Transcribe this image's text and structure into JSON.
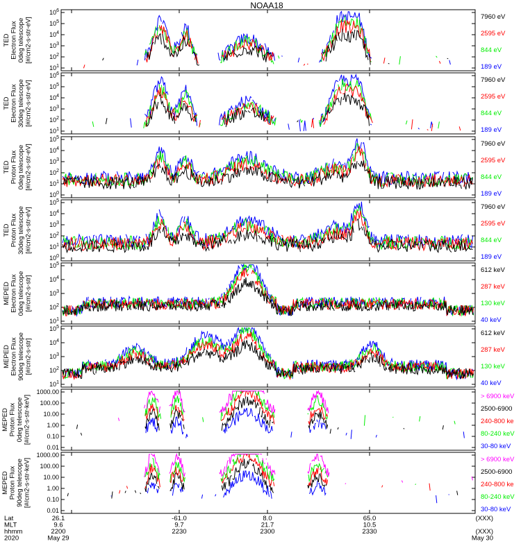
{
  "title": "NOAA18",
  "colors": {
    "black": "#000000",
    "red": "#ff0000",
    "green": "#00ee00",
    "blue": "#0000ff",
    "magenta": "#ff00ff"
  },
  "bottom_axis": {
    "row_labels": [
      "Lat",
      "MLT",
      "hhmm",
      "2020"
    ],
    "ticks": [
      {
        "lat": "26.1",
        "mlt": "9.6",
        "hhmm": "2200",
        "date": "May 29"
      },
      {
        "lat": "-61.0",
        "mlt": "9.7",
        "hhmm": "2230",
        "date": ""
      },
      {
        "lat": "8.0",
        "mlt": "21.7",
        "hhmm": "2300",
        "date": ""
      },
      {
        "lat": "65.0",
        "mlt": "10.5",
        "hhmm": "2330",
        "date": ""
      },
      {
        "lat": "(XXX)",
        "mlt": "",
        "hhmm": "(XXX)",
        "date": "May 30"
      }
    ]
  },
  "chart_data": [
    {
      "type": "line",
      "ylabel": [
        "TED",
        "Electron Flux",
        "0deg telescope",
        "[#/cm2-s-str-eV]"
      ],
      "log_scale": true,
      "tick_labels": [
        "10^1",
        "10^2",
        "10^3",
        "10^4",
        "10^5",
        "10^6"
      ],
      "legend": [
        {
          "name": "7960 eV",
          "color": "#000000"
        },
        {
          "name": "2595 eV",
          "color": "#ff0000"
        },
        {
          "name": "844 eV",
          "color": "#00ee00"
        },
        {
          "name": "189 eV",
          "color": "#0000ff"
        }
      ]
    },
    {
      "type": "line",
      "ylabel": [
        "TED",
        "Electron Flux",
        "30deg telescope",
        "[#/cm2-s-str-eV]"
      ],
      "log_scale": true,
      "tick_labels": [
        "10^1",
        "10^2",
        "10^3",
        "10^4",
        "10^5",
        "10^6"
      ],
      "legend": [
        {
          "name": "7960 eV",
          "color": "#000000"
        },
        {
          "name": "2595 eV",
          "color": "#ff0000"
        },
        {
          "name": "844 eV",
          "color": "#00ee00"
        },
        {
          "name": "189 eV",
          "color": "#0000ff"
        }
      ]
    },
    {
      "type": "line",
      "ylabel": [
        "TED",
        "Proton Flux",
        "0deg telescope",
        "[#/cm2-s-str-eV]"
      ],
      "log_scale": true,
      "tick_labels": [
        "10^0",
        "10^1",
        "10^2",
        "10^3",
        "10^4",
        "10^5"
      ],
      "legend": [
        {
          "name": "7960 eV",
          "color": "#000000"
        },
        {
          "name": "2595 eV",
          "color": "#ff0000"
        },
        {
          "name": "844 eV",
          "color": "#00ee00"
        },
        {
          "name": "189 eV",
          "color": "#0000ff"
        }
      ]
    },
    {
      "type": "line",
      "ylabel": [
        "TED",
        "Proton Flux",
        "30deg telescope",
        "[#/cm2-s-str-eV]"
      ],
      "log_scale": true,
      "tick_labels": [
        "10^0",
        "10^1",
        "10^2",
        "10^3",
        "10^4",
        "10^5"
      ],
      "legend": [
        {
          "name": "7960 eV",
          "color": "#000000"
        },
        {
          "name": "2595 eV",
          "color": "#ff0000"
        },
        {
          "name": "844 eV",
          "color": "#00ee00"
        },
        {
          "name": "189 eV",
          "color": "#0000ff"
        }
      ]
    },
    {
      "type": "line",
      "ylabel": [
        "MEPED",
        "Electron Flux",
        "0deg telescope",
        "[#/cm2-s-str]"
      ],
      "log_scale": true,
      "tick_labels": [
        "10^1",
        "10^2",
        "10^3",
        "10^4",
        "10^5"
      ],
      "legend": [
        {
          "name": "612 keV",
          "color": "#000000"
        },
        {
          "name": "287 keV",
          "color": "#ff0000"
        },
        {
          "name": "130 keV",
          "color": "#00ee00"
        },
        {
          "name": "40 keV",
          "color": "#0000ff"
        }
      ]
    },
    {
      "type": "line",
      "ylabel": [
        "MEPED",
        "Electron Flux",
        "90deg telescope",
        "[#/cm2-s-str]"
      ],
      "log_scale": true,
      "tick_labels": [
        "10^1",
        "10^2",
        "10^3",
        "10^4",
        "10^5"
      ],
      "legend": [
        {
          "name": "612 keV",
          "color": "#000000"
        },
        {
          "name": "287 keV",
          "color": "#ff0000"
        },
        {
          "name": "130 keV",
          "color": "#00ee00"
        },
        {
          "name": "40 keV",
          "color": "#0000ff"
        }
      ]
    },
    {
      "type": "line",
      "ylabel": [
        "MEPED",
        "Proton Flux",
        "0deg telescope",
        "[#/cm2-s-str-keV]"
      ],
      "log_scale": true,
      "tick_labels": [
        "0.01",
        "0.10",
        "1.00",
        "10.00",
        "100.00",
        "1000.00"
      ],
      "legend": [
        {
          "name": "> 6900 keV",
          "color": "#ff00ff"
        },
        {
          "name": "2500-6900",
          "color": "#000000"
        },
        {
          "name": "240-800 ke",
          "color": "#ff0000"
        },
        {
          "name": "80-240 keV",
          "color": "#00ee00"
        },
        {
          "name": "30-80 keV",
          "color": "#0000ff"
        }
      ]
    },
    {
      "type": "line",
      "ylabel": [
        "MEPED",
        "Proton Flux",
        "90deg telescope",
        "[#/cm2-s-str-keV]"
      ],
      "log_scale": true,
      "tick_labels": [
        "0.01",
        "0.10",
        "1.00",
        "10.00",
        "100.00",
        "1000.00"
      ],
      "legend": [
        {
          "name": "> 6900 keV",
          "color": "#ff00ff"
        },
        {
          "name": "2500-6900",
          "color": "#000000"
        },
        {
          "name": "240-800 ke",
          "color": "#ff0000"
        },
        {
          "name": "80-240 keV",
          "color": "#00ee00"
        },
        {
          "name": "30-80 keV",
          "color": "#0000ff"
        }
      ]
    }
  ]
}
